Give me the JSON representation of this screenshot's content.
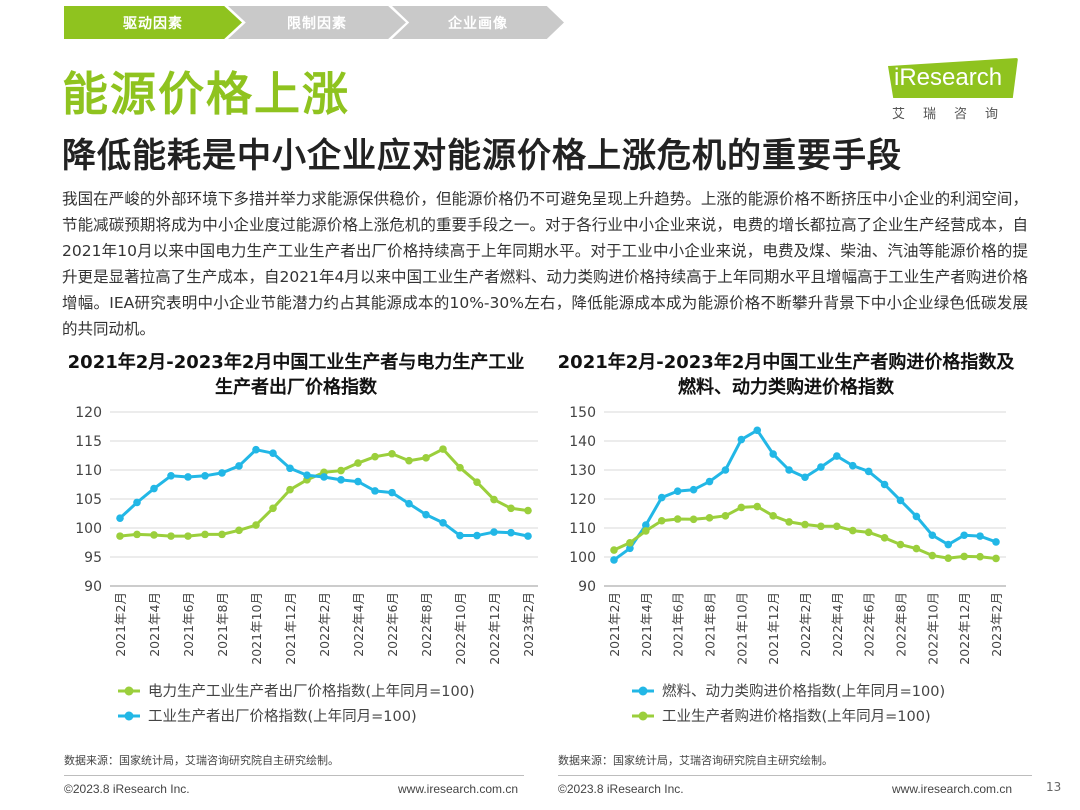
{
  "nav": {
    "steps": [
      "驱动因素",
      "限制因素",
      "企业画像"
    ],
    "active_color": "#8fc31f",
    "inactive_color": "#c9c9c9"
  },
  "logo": {
    "text": "iResearch",
    "sub": "艾瑞咨询"
  },
  "title": "能源价格上涨",
  "subtitle": "降低能耗是中小企业应对能源价格上涨危机的重要手段",
  "body": "我国在严峻的外部环境下多措并举力求能源保供稳价，但能源价格仍不可避免呈现上升趋势。上涨的能源价格不断挤压中小企业的利润空间，节能减碳预期将成为中小企业度过能源价格上涨危机的重要手段之一。对于各行业中小企业来说，电费的增长都拉高了企业生产经营成本，自2021年10月以来中国电力生产工业生产者出厂价格持续高于上年同期水平。对于工业中小企业来说，电费及煤、柴油、汽油等能源价格的提升更是显著拉高了生产成本，自2021年4月以来中国工业生产者燃料、动力类购进价格持续高于上年同期水平且增幅高于工业生产者购进价格增幅。IEA研究表明中小企业节能潜力约占其能源成本的10%-30%左右，降低能源成本成为能源价格不断攀升背景下中小企业绿色低碳发展的共同动机。",
  "chart_data": [
    {
      "type": "line",
      "title": "2021年2月-2023年2月中国工业生产者与电力生产工业生产者出厂价格指数",
      "x": [
        "2021年2月",
        "2021年3月",
        "2021年4月",
        "2021年5月",
        "2021年6月",
        "2021年7月",
        "2021年8月",
        "2021年9月",
        "2021年10月",
        "2021年11月",
        "2021年12月",
        "2022年1月",
        "2022年2月",
        "2022年3月",
        "2022年4月",
        "2022年5月",
        "2022年6月",
        "2022年7月",
        "2022年8月",
        "2022年9月",
        "2022年10月",
        "2022年11月",
        "2022年12月",
        "2023年1月",
        "2023年2月"
      ],
      "tick_labels": [
        "2021年2月",
        "2021年4月",
        "2021年6月",
        "2021年8月",
        "2021年10月",
        "2021年12月",
        "2022年2月",
        "2022年4月",
        "2022年6月",
        "2022年8月",
        "2022年10月",
        "2022年12月",
        "2023年2月"
      ],
      "ylim": [
        90,
        120
      ],
      "yticks": [
        90,
        95,
        100,
        105,
        110,
        115,
        120
      ],
      "grid": true,
      "series": [
        {
          "name": "电力生产工业生产者出厂价格指数(上年同月=100)",
          "color": "#9bcf3c",
          "values": [
            98.6,
            98.9,
            98.8,
            98.6,
            98.6,
            98.9,
            98.9,
            99.6,
            100.5,
            103.4,
            106.6,
            108.3,
            109.6,
            109.9,
            111.2,
            112.3,
            112.8,
            111.6,
            112.1,
            113.6,
            110.4,
            107.9,
            104.9,
            103.4,
            103.0
          ]
        },
        {
          "name": "工业生产者出厂价格指数(上年同月=100)",
          "color": "#22b7e6",
          "values": [
            101.7,
            104.4,
            106.8,
            109.0,
            108.8,
            109.0,
            109.5,
            110.7,
            113.5,
            112.9,
            110.3,
            109.1,
            108.8,
            108.3,
            108.0,
            106.4,
            106.1,
            104.2,
            102.3,
            100.9,
            98.7,
            98.7,
            99.3,
            99.2,
            98.6
          ]
        }
      ]
    },
    {
      "type": "line",
      "title": "2021年2月-2023年2月中国工业生产者购进价格指数及燃料、动力类购进价格指数",
      "x": [
        "2021年2月",
        "2021年3月",
        "2021年4月",
        "2021年5月",
        "2021年6月",
        "2021年7月",
        "2021年8月",
        "2021年9月",
        "2021年10月",
        "2021年11月",
        "2021年12月",
        "2022年1月",
        "2022年2月",
        "2022年3月",
        "2022年4月",
        "2022年5月",
        "2022年6月",
        "2022年7月",
        "2022年8月",
        "2022年9月",
        "2022年10月",
        "2022年11月",
        "2022年12月",
        "2023年1月",
        "2023年2月"
      ],
      "tick_labels": [
        "2021年2月",
        "2021年4月",
        "2021年6月",
        "2021年8月",
        "2021年10月",
        "2021年12月",
        "2022年2月",
        "2022年4月",
        "2022年6月",
        "2022年8月",
        "2022年10月",
        "2022年12月",
        "2023年2月"
      ],
      "ylim": [
        90,
        150
      ],
      "yticks": [
        90,
        100,
        110,
        120,
        130,
        140,
        150
      ],
      "grid": true,
      "series": [
        {
          "name": "燃料、动力类购进价格指数(上年同月=100)",
          "color": "#22b7e6",
          "values": [
            99.0,
            103.0,
            111.0,
            120.5,
            122.7,
            123.2,
            126.0,
            130.0,
            140.5,
            143.7,
            135.5,
            130.0,
            127.5,
            131.0,
            134.8,
            131.5,
            129.5,
            125.0,
            119.5,
            114.0,
            107.5,
            104.3,
            107.5,
            107.2,
            105.2
          ]
        },
        {
          "name": "工业生产者购进价格指数(上年同月=100)",
          "color": "#9bcf3c",
          "values": [
            102.4,
            104.9,
            109.0,
            112.5,
            113.1,
            113.0,
            113.5,
            114.2,
            117.1,
            117.4,
            114.2,
            112.1,
            111.2,
            110.6,
            110.6,
            109.1,
            108.5,
            106.6,
            104.3,
            102.9,
            100.5,
            99.6,
            100.2,
            100.1,
            99.5
          ]
        }
      ]
    }
  ],
  "sources": {
    "left": "数据来源：国家统计局，艾瑞咨询研究院自主研究绘制。",
    "right": "数据来源：国家统计局，艾瑞咨询研究院自主研究绘制。"
  },
  "footer": {
    "left": "©2023.8 iResearch Inc.",
    "left_url": "www.iresearch.com.cn",
    "right": "©2023.8 iResearch Inc.",
    "right_url": "www.iresearch.com.cn",
    "page": "13"
  }
}
